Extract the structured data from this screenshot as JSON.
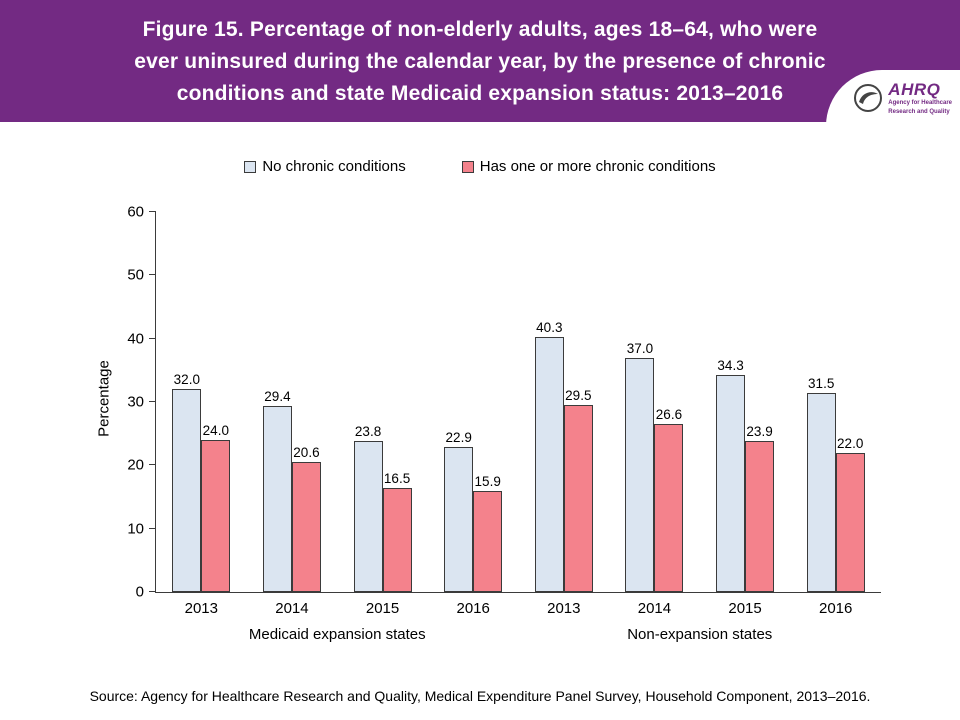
{
  "header": {
    "title_lines": [
      "Figure 15. Percentage of non-elderly adults, ages 18–64, who were",
      "ever uninsured during the calendar year, by the presence of chronic",
      "conditions and state Medicaid expansion status: 2013–2016"
    ],
    "accent_color": "#732a83"
  },
  "logo": {
    "org": "AHRQ",
    "tagline_line1": "Agency for Healthcare",
    "tagline_line2": "Research and Quality"
  },
  "chart_data": {
    "type": "bar",
    "title": "Percentage of non-elderly adults, ages 18–64, who were ever uninsured during the calendar year, by the presence of chronic conditions and state Medicaid expansion status: 2013–2016",
    "xlabel": "",
    "ylabel": "Percentage",
    "ylim": [
      0,
      60
    ],
    "yticks": [
      0,
      10,
      20,
      30,
      40,
      50,
      60
    ],
    "grid": false,
    "legend_position": "top",
    "categories": [
      "2013",
      "2014",
      "2015",
      "2016",
      "2013",
      "2014",
      "2015",
      "2016"
    ],
    "group_labels": [
      "Medicaid expansion states",
      "Non-expansion states"
    ],
    "series": [
      {
        "name": "No chronic conditions",
        "color": "#dbe5f1",
        "values": [
          32.0,
          29.4,
          23.8,
          22.9,
          40.3,
          37.0,
          34.3,
          31.5
        ]
      },
      {
        "name": "Has one or more chronic conditions",
        "color": "#f4828c",
        "values": [
          24.0,
          20.6,
          16.5,
          15.9,
          29.5,
          26.6,
          23.9,
          22.0
        ]
      }
    ]
  },
  "source": "Source: Agency for Healthcare Research and Quality, Medical Expenditure Panel Survey, Household Component, 2013–2016."
}
